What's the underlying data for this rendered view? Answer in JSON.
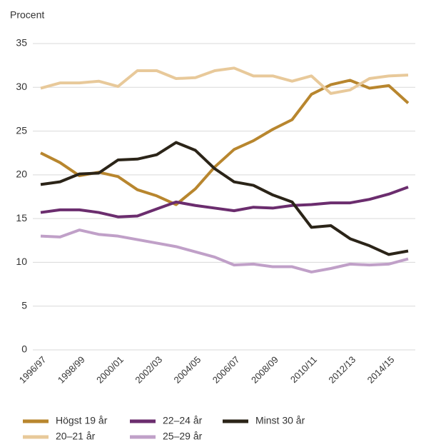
{
  "chart_data": {
    "type": "line",
    "y_label": "Procent",
    "categories": [
      "1996/97",
      null,
      "1998/99",
      null,
      "2000/01",
      null,
      "2002/03",
      null,
      "2004/05",
      null,
      "2006/07",
      null,
      "2008/09",
      null,
      "2010/11",
      null,
      "2012/13",
      null,
      "2014/15",
      null
    ],
    "series": [
      {
        "name": "Högst 19 år",
        "color": "#b8862e",
        "values": [
          22.5,
          21.4,
          19.9,
          20.3,
          19.8,
          18.3,
          17.6,
          16.6,
          18.4,
          20.9,
          22.9,
          23.9,
          25.2,
          26.3,
          29.2,
          30.3,
          30.8,
          29.9,
          30.2,
          28.2
        ]
      },
      {
        "name": "22–24 år",
        "color": "#6b2d6e",
        "values": [
          15.7,
          16.0,
          16.0,
          15.7,
          15.2,
          15.3,
          16.1,
          16.9,
          16.5,
          16.2,
          15.9,
          16.3,
          16.2,
          16.5,
          16.6,
          16.8,
          16.8,
          17.2,
          17.8,
          18.6
        ]
      },
      {
        "name": "Minst 30 år",
        "color": "#2b2418",
        "values": [
          18.9,
          19.2,
          20.1,
          20.2,
          21.7,
          21.8,
          22.3,
          23.7,
          22.8,
          20.7,
          19.2,
          18.8,
          17.7,
          16.9,
          14.0,
          14.2,
          12.7,
          11.9,
          10.9,
          11.3
        ]
      },
      {
        "name": "20–21 år",
        "color": "#e8c99a",
        "values": [
          29.9,
          30.5,
          30.5,
          30.7,
          30.1,
          31.9,
          31.9,
          31.0,
          31.1,
          31.9,
          32.2,
          31.3,
          31.3,
          30.7,
          31.3,
          29.3,
          29.7,
          31.0,
          31.3,
          31.4
        ]
      },
      {
        "name": "25–29 år",
        "color": "#c0a0c8",
        "values": [
          13.0,
          12.9,
          13.7,
          13.2,
          13.0,
          12.6,
          12.2,
          11.8,
          11.2,
          10.6,
          9.7,
          9.8,
          9.5,
          9.5,
          8.9,
          9.3,
          9.8,
          9.7,
          9.8,
          10.4
        ]
      }
    ],
    "ylim": [
      0,
      35
    ],
    "yticks": [
      0,
      5,
      10,
      15,
      20,
      25,
      30,
      35
    ],
    "grid": true
  }
}
